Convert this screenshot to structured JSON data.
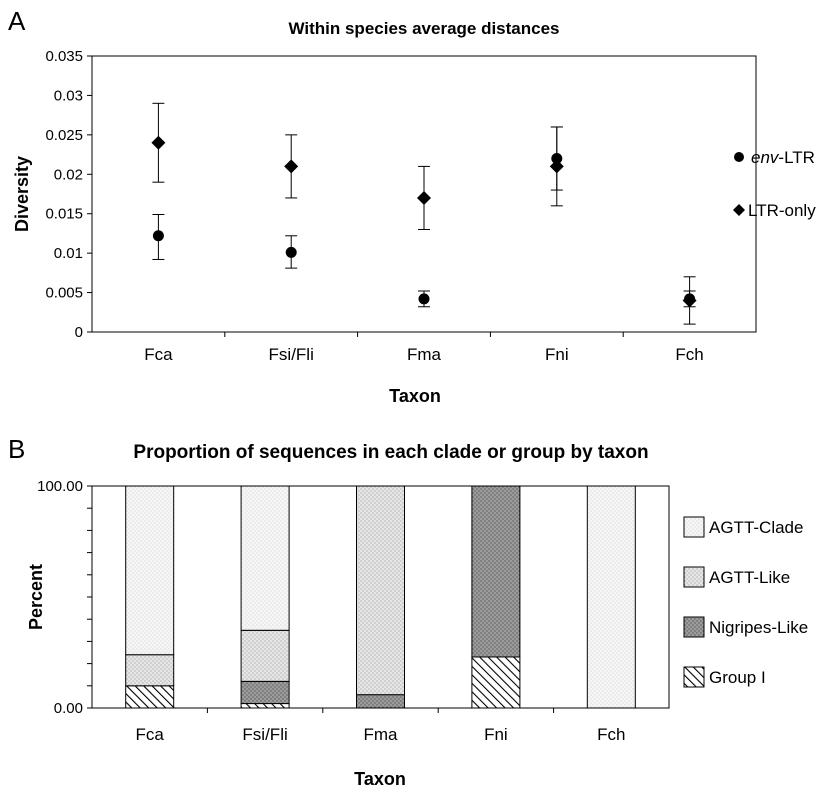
{
  "chart_data": [
    {
      "panel": "A",
      "type": "scatter",
      "title": "Within species average distances",
      "xlabel": "Taxon",
      "ylabel": "Diversity",
      "categories": [
        "Fca",
        "Fsi/Fli",
        "Fma",
        "Fni",
        "Fch"
      ],
      "ylim": [
        0,
        0.035
      ],
      "yticks": [
        "0",
        "0.005",
        "0.01",
        "0.015",
        "0.02",
        "0.025",
        "0.03",
        "0.035"
      ],
      "grid": false,
      "legend_position": "right",
      "series": [
        {
          "name": "LTR-only",
          "marker": "diamond",
          "values": [
            0.024,
            0.021,
            0.017,
            0.021,
            0.004
          ],
          "err_low": [
            0.019,
            0.017,
            0.013,
            0.016,
            0.001
          ],
          "err_high": [
            0.029,
            0.025,
            0.021,
            0.026,
            0.007
          ]
        },
        {
          "name": "env-LTR",
          "legend_italic": "env",
          "legend_rest": "-LTR",
          "marker": "circle",
          "values": [
            0.0122,
            0.0101,
            0.0042,
            0.022,
            0.0042
          ],
          "err_low": [
            0.0092,
            0.0081,
            0.0032,
            0.018,
            0.0032
          ],
          "err_high": [
            0.0149,
            0.0122,
            0.0052,
            0.026,
            0.0052
          ]
        }
      ]
    },
    {
      "panel": "B",
      "type": "bar",
      "stacked": true,
      "title": "Proportion of sequences in each clade or group by taxon",
      "xlabel": "Taxon",
      "ylabel": "Percent",
      "categories": [
        "Fca",
        "Fsi/Fli",
        "Fma",
        "Fni",
        "Fch"
      ],
      "ylim": [
        0,
        100
      ],
      "yticks": [
        "0.00",
        "100.00"
      ],
      "legend_position": "right",
      "series": [
        {
          "name": "Group I",
          "pattern": "hatch",
          "values": [
            10,
            2,
            0,
            23,
            0
          ]
        },
        {
          "name": "Nigripes-Like",
          "pattern": "dark-dots",
          "values": [
            0,
            10,
            6,
            77,
            0
          ]
        },
        {
          "name": "AGTT-Like",
          "pattern": "medium-dots",
          "values": [
            14,
            23,
            94,
            0,
            0
          ]
        },
        {
          "name": "AGTT-Clade",
          "pattern": "light-dots",
          "values": [
            76,
            65,
            0,
            0,
            100
          ]
        }
      ]
    }
  ]
}
